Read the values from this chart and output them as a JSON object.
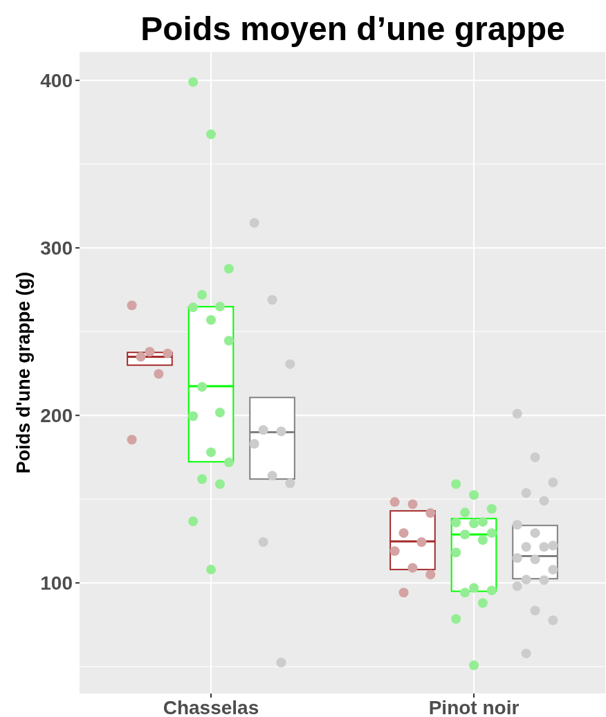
{
  "chart_data": {
    "type": "box",
    "title": "Poids moyen d’une grappe",
    "ylabel": "Poids d'une grappe (g)",
    "categories": [
      "Chasselas",
      "Pinot noir"
    ],
    "ylim": [
      34,
      417
    ],
    "yticks": [
      {
        "value": 50,
        "label": null
      },
      100,
      {
        "value": 150,
        "label": null
      },
      200,
      {
        "value": 250,
        "label": null
      },
      300,
      {
        "value": 350,
        "label": null
      },
      400
    ],
    "grid": true,
    "marker": "circle",
    "series": [
      {
        "color": "#a52a2a",
        "boxes": [
          {
            "low": 230,
            "q1": 230,
            "median": 235,
            "q3": 237.6,
            "high": 237.6
          },
          {
            "low": 108,
            "q1": 108,
            "median": 124.8,
            "q3": 143,
            "high": 143
          }
        ]
      },
      {
        "color": "#00ff00",
        "boxes": [
          {
            "low": 172.3,
            "q1": 172.3,
            "median": 217.4,
            "q3": 264.9,
            "high": 264.9
          },
          {
            "low": 95,
            "q1": 95,
            "median": 128.9,
            "q3": 138.4,
            "high": 138.4
          }
        ]
      },
      {
        "color": "#808080",
        "boxes": [
          {
            "low": 162,
            "q1": 162,
            "median": 190,
            "q3": 210.7,
            "high": 210.7
          },
          {
            "low": 102.5,
            "q1": 102.5,
            "median": 116,
            "q3": 134.3,
            "high": 134.3
          }
        ]
      },
      {
        "type": "scatter",
        "color": "#d4a3a3",
        "x": [
          "Chasselas",
          "Chasselas",
          "Chasselas",
          "Chasselas",
          "Chasselas",
          "Chasselas",
          "Pinot noir",
          "Pinot noir",
          "Pinot noir",
          "Pinot noir",
          "Pinot noir",
          "Pinot noir",
          "Pinot noir",
          "Pinot noir",
          "Pinot noir"
        ],
        "values": [
          265.7,
          238,
          237,
          235,
          224.8,
          185.5,
          148.3,
          147,
          141.7,
          129.8,
          124.4,
          119,
          109,
          105,
          94.2
        ]
      },
      {
        "type": "scatter",
        "color": "#93ee93",
        "x": [
          "Chasselas",
          "Chasselas",
          "Chasselas",
          "Chasselas",
          "Chasselas",
          "Chasselas",
          "Chasselas",
          "Chasselas",
          "Chasselas",
          "Chasselas",
          "Chasselas",
          "Chasselas",
          "Chasselas",
          "Chasselas",
          "Chasselas",
          "Chasselas",
          "Chasselas",
          "Pinot noir",
          "Pinot noir",
          "Pinot noir",
          "Pinot noir",
          "Pinot noir",
          "Pinot noir",
          "Pinot noir",
          "Pinot noir",
          "Pinot noir",
          "Pinot noir",
          "Pinot noir",
          "Pinot noir",
          "Pinot noir",
          "Pinot noir",
          "Pinot noir",
          "Pinot noir",
          "Pinot noir"
        ],
        "values": [
          399,
          367.8,
          287.6,
          272,
          265,
          264.5,
          257,
          244.6,
          217,
          201.7,
          199.6,
          178,
          172,
          162,
          159,
          136.8,
          108,
          159,
          152.5,
          144.2,
          142,
          136.4,
          136,
          135.5,
          129.8,
          128.9,
          125.6,
          118.2,
          97,
          95.5,
          94.2,
          88,
          78.5,
          50.8
        ]
      },
      {
        "type": "scatter",
        "color": "#cccccc",
        "x": [
          "Chasselas",
          "Chasselas",
          "Chasselas",
          "Chasselas",
          "Chasselas",
          "Chasselas",
          "Chasselas",
          "Chasselas",
          "Chasselas",
          "Chasselas",
          "Pinot noir",
          "Pinot noir",
          "Pinot noir",
          "Pinot noir",
          "Pinot noir",
          "Pinot noir",
          "Pinot noir",
          "Pinot noir",
          "Pinot noir",
          "Pinot noir",
          "Pinot noir",
          "Pinot noir",
          "Pinot noir",
          "Pinot noir",
          "Pinot noir",
          "Pinot noir",
          "Pinot noir",
          "Pinot noir",
          "Pinot noir"
        ],
        "values": [
          314.9,
          269,
          230.6,
          191.3,
          190.5,
          183,
          164,
          159.5,
          124.4,
          52.5,
          201,
          175,
          160,
          153.7,
          149,
          134.7,
          129.8,
          122.3,
          121.5,
          121.5,
          114.9,
          114,
          107.9,
          102,
          101.7,
          98,
          83.5,
          77.7,
          57.9
        ]
      }
    ]
  }
}
